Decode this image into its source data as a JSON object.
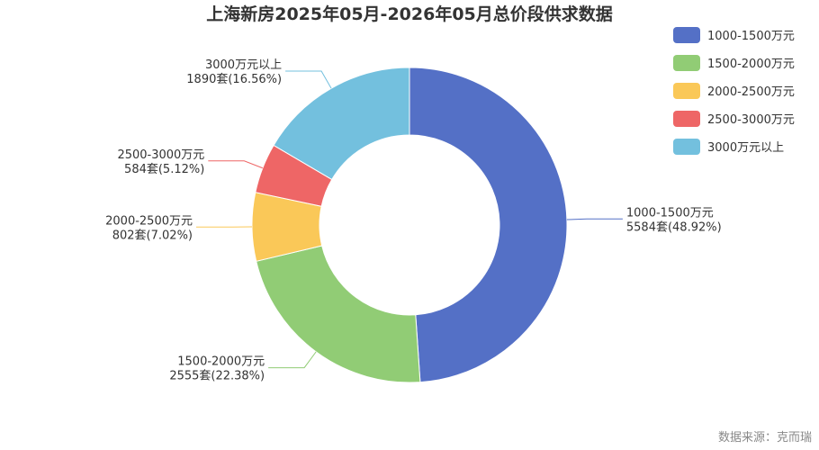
{
  "chart_data": {
    "type": "pie",
    "title": "上海新房2025年05月-2026年05月总价段供求数据",
    "unit": "套",
    "legend_position": "top-right",
    "categories": [
      "1000-1500万元",
      "1500-2000万元",
      "2000-2500万元",
      "2500-3000万元",
      "3000万元以上"
    ],
    "values": [
      5584,
      2555,
      802,
      584,
      1890
    ],
    "percents": [
      "48.92%",
      "22.38%",
      "7.02%",
      "5.12%",
      "16.56%"
    ],
    "colors": [
      "#5470c6",
      "#91cc75",
      "#fac858",
      "#ee6666",
      "#73c0de"
    ]
  },
  "source": "数据来源：克而瑞"
}
